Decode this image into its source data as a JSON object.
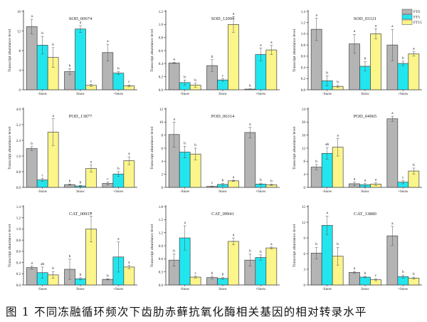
{
  "caption": "图 1 不同冻融循环频次下齿肋赤藓抗氧化酶相关基因的相对转录水平",
  "legend": [
    {
      "label": "FT0",
      "color": "#b4b4b4"
    },
    {
      "label": "FT5",
      "color": "#22e6ee"
    },
    {
      "label": "FT15",
      "color": "#fbf58a"
    }
  ],
  "chart_data": [
    {
      "type": "bar",
      "title": "SOD_00674",
      "ylabel": "Transcript abundance level",
      "categories": [
        "-Snow",
        "Snow",
        "+Snow"
      ],
      "ylim": [
        0,
        16
      ],
      "yticks": [
        0,
        4,
        8,
        12,
        16
      ],
      "series": [
        {
          "name": "FT0",
          "values": [
            12.9,
            3.7,
            7.6
          ],
          "errors": [
            1.5,
            0.6,
            1.7
          ],
          "letters": [
            "a",
            "b",
            "a"
          ]
        },
        {
          "name": "FT5",
          "values": [
            9.1,
            12.4,
            3.4
          ],
          "errors": [
            1.8,
            0.7,
            0.3
          ],
          "letters": [
            "b",
            "a",
            "b"
          ]
        },
        {
          "name": "FT15",
          "values": [
            6.6,
            0.9,
            0.8
          ],
          "errors": [
            2.0,
            0.2,
            0.2
          ],
          "letters": [
            "b",
            "c",
            "c"
          ]
        }
      ]
    },
    {
      "type": "bar",
      "title": "SOD_12094",
      "ylabel": "Transcript abundance level",
      "categories": [
        "-Snow",
        "Snow",
        "+Snow"
      ],
      "ylim": [
        0,
        1.2
      ],
      "yticks": [
        0.0,
        0.2,
        0.4,
        0.6,
        0.8,
        1.0,
        1.2
      ],
      "series": [
        {
          "name": "FT0",
          "values": [
            0.41,
            0.37,
            0.01
          ],
          "errors": [
            0.01,
            0.09,
            0.005
          ],
          "letters": [
            "a",
            "b",
            "b"
          ]
        },
        {
          "name": "FT5",
          "values": [
            0.11,
            0.15,
            0.54
          ],
          "errors": [
            0.04,
            0.02,
            0.1
          ],
          "letters": [
            "b",
            "c",
            "a"
          ]
        },
        {
          "name": "FT15",
          "values": [
            0.07,
            1.0,
            0.61
          ],
          "errors": [
            0.03,
            0.12,
            0.07
          ],
          "letters": [
            "b",
            "a",
            "a"
          ]
        }
      ]
    },
    {
      "type": "bar",
      "title": "SOD_03121",
      "ylabel": "Transcript abundance level",
      "categories": [
        "-Snow",
        "Snow",
        "+Snow"
      ],
      "ylim": [
        0,
        1.4
      ],
      "yticks": [
        0.0,
        0.2,
        0.4,
        0.6,
        0.8,
        1.0,
        1.2,
        1.4
      ],
      "legend_position": "top-right",
      "series": [
        {
          "name": "FT0",
          "values": [
            1.08,
            0.82,
            0.8
          ],
          "errors": [
            0.2,
            0.17,
            0.28
          ],
          "letters": [
            "a",
            "a",
            "a"
          ]
        },
        {
          "name": "FT5",
          "values": [
            0.16,
            0.42,
            0.47
          ],
          "errors": [
            0.09,
            0.08,
            0.04
          ],
          "letters": [
            "b",
            "b",
            "b"
          ]
        },
        {
          "name": "FT15",
          "values": [
            0.06,
            1.0,
            0.64
          ],
          "errors": [
            0.02,
            0.09,
            0.04
          ],
          "letters": [
            "b",
            "a",
            "a"
          ]
        }
      ]
    },
    {
      "type": "bar",
      "title": "POD_13877",
      "ylabel": "Transcript abundance level",
      "categories": [
        "-Snow",
        "Snow",
        "+Snow"
      ],
      "ylim": [
        0,
        4.0
      ],
      "yticks": [
        0.0,
        0.8,
        1.6,
        2.4,
        3.2,
        4.0
      ],
      "series": [
        {
          "name": "FT0",
          "values": [
            1.98,
            0.14,
            0.2
          ],
          "errors": [
            0.1,
            0.03,
            0.08
          ],
          "letters": [
            "b",
            "b",
            "c"
          ]
        },
        {
          "name": "FT5",
          "values": [
            0.38,
            0.07,
            0.68
          ],
          "errors": [
            0.08,
            0.03,
            0.12
          ],
          "letters": [
            "c",
            "b",
            "b"
          ]
        },
        {
          "name": "FT15",
          "values": [
            2.82,
            0.96,
            1.36
          ],
          "errors": [
            0.68,
            0.18,
            0.2
          ],
          "letters": [
            "a",
            "a",
            "a"
          ]
        }
      ]
    },
    {
      "type": "bar",
      "title": "POD_06314",
      "ylabel": "Transcript abundance level",
      "categories": [
        "-Snow",
        "Snow",
        "+Snow"
      ],
      "ylim": [
        0,
        12
      ],
      "yticks": [
        0,
        2,
        4,
        6,
        8,
        10,
        12
      ],
      "series": [
        {
          "name": "FT0",
          "values": [
            8.1,
            0.15,
            8.4
          ],
          "errors": [
            1.9,
            0.05,
            0.8
          ],
          "letters": [
            "a",
            "c",
            "a"
          ]
        },
        {
          "name": "FT5",
          "values": [
            5.4,
            0.45,
            0.5
          ],
          "errors": [
            0.9,
            0.15,
            0.15
          ],
          "letters": [
            "b",
            "b",
            "b"
          ]
        },
        {
          "name": "FT15",
          "values": [
            5.1,
            1.0,
            0.4
          ],
          "errors": [
            0.9,
            0.1,
            0.1
          ],
          "letters": [
            "b",
            "a",
            "b"
          ]
        }
      ]
    },
    {
      "type": "bar",
      "title": "POD_04965",
      "ylabel": "Transcript abundance level",
      "categories": [
        "-Snow",
        "Snow",
        "+Snow"
      ],
      "ylim": [
        0,
        24
      ],
      "yticks": [
        0,
        4,
        8,
        12,
        16,
        20,
        24
      ],
      "series": [
        {
          "name": "FT0",
          "values": [
            6.2,
            1.1,
            21.0
          ],
          "errors": [
            0.8,
            0.5,
            0.8
          ],
          "letters": [
            "b",
            "a",
            "a"
          ]
        },
        {
          "name": "FT5",
          "values": [
            10.4,
            0.8,
            1.6
          ],
          "errors": [
            1.8,
            0.4,
            0.5
          ],
          "letters": [
            "ab",
            "a",
            "c"
          ]
        },
        {
          "name": "FT15",
          "values": [
            12.3,
            1.0,
            5.0
          ],
          "errors": [
            2.7,
            0.4,
            0.9
          ],
          "letters": [
            "a",
            "a",
            "b"
          ]
        }
      ]
    },
    {
      "type": "bar",
      "title": "CAT_00937",
      "ylabel": "Transcript abundance level",
      "categories": [
        "-Snow",
        "Snow",
        "+Snow"
      ],
      "ylim": [
        0,
        1.4
      ],
      "yticks": [
        0.0,
        0.2,
        0.4,
        0.6,
        0.8,
        1.0,
        1.2,
        1.4
      ],
      "series": [
        {
          "name": "FT0",
          "values": [
            0.31,
            0.28,
            0.1
          ],
          "errors": [
            0.03,
            0.18,
            0.01
          ],
          "letters": [
            "a",
            "b",
            "b"
          ]
        },
        {
          "name": "FT5",
          "values": [
            0.22,
            0.11,
            0.5
          ],
          "errors": [
            0.1,
            0.02,
            0.27
          ],
          "letters": [
            "ab",
            "b",
            "a"
          ]
        },
        {
          "name": "FT15",
          "values": [
            0.18,
            1.0,
            0.32
          ],
          "errors": [
            0.06,
            0.23,
            0.03
          ],
          "letters": [
            "b",
            "a",
            "a"
          ]
        }
      ]
    },
    {
      "type": "bar",
      "title": "CAT_09941",
      "ylabel": "Transcript abundance level",
      "categories": [
        "-Snow",
        "Snow",
        "+Snow"
      ],
      "ylim": [
        0,
        1.8
      ],
      "yticks": [
        0.0,
        0.3,
        0.6,
        0.9,
        1.2,
        1.5,
        1.8
      ],
      "series": [
        {
          "name": "FT0",
          "values": [
            0.57,
            0.17,
            0.57
          ],
          "errors": [
            0.14,
            0.03,
            0.14
          ],
          "letters": [
            "b",
            "b",
            "b"
          ]
        },
        {
          "name": "FT5",
          "values": [
            1.08,
            0.15,
            0.63
          ],
          "errors": [
            0.28,
            0.02,
            0.06
          ],
          "letters": [
            "a",
            "b",
            "b"
          ]
        },
        {
          "name": "FT15",
          "values": [
            0.18,
            1.0,
            0.85
          ],
          "errors": [
            0.02,
            0.08,
            0.02
          ],
          "letters": [
            "c",
            "a",
            "a"
          ]
        }
      ]
    },
    {
      "type": "bar",
      "title": "CAT_13880",
      "ylabel": "Transcript abundance level",
      "categories": [
        "-Snow",
        "Snow",
        "+Snow"
      ],
      "ylim": [
        0,
        15
      ],
      "yticks": [
        0,
        3,
        6,
        9,
        12,
        15
      ],
      "series": [
        {
          "name": "FT0",
          "values": [
            6.1,
            2.4,
            9.4
          ],
          "errors": [
            1.1,
            0.2,
            1.8
          ],
          "letters": [
            "b",
            "a",
            "a"
          ]
        },
        {
          "name": "FT5",
          "values": [
            11.4,
            1.5,
            1.6
          ],
          "errors": [
            1.8,
            0.15,
            0.3
          ],
          "letters": [
            "a",
            "b",
            "b"
          ]
        },
        {
          "name": "FT15",
          "values": [
            5.5,
            1.0,
            1.3
          ],
          "errors": [
            1.7,
            0.2,
            0.2
          ],
          "letters": [
            "b",
            "c",
            "b"
          ]
        }
      ]
    }
  ]
}
